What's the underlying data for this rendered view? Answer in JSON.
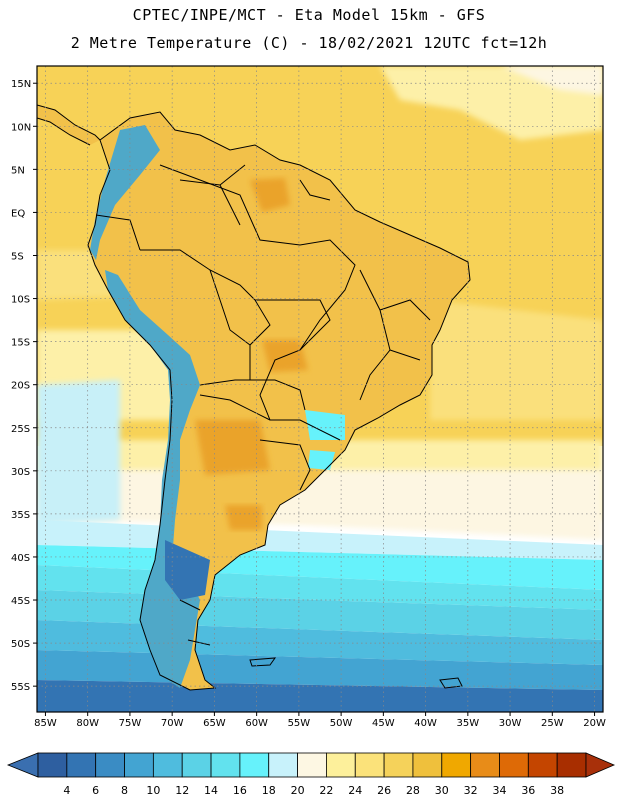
{
  "header": {
    "line1": "CPTEC/INPE/MCT -  Eta Model 15km - GFS",
    "line2": "2 Metre Temperature (C) - 18/02/2021 12UTC fct=12h"
  },
  "axes": {
    "lat_labels": [
      "15N",
      "10N",
      "5N",
      "EQ",
      "5S",
      "10S",
      "15S",
      "20S",
      "25S",
      "30S",
      "35S",
      "40S",
      "45S",
      "50S",
      "55S"
    ],
    "lat_values": [
      15,
      10,
      5,
      0,
      -5,
      -10,
      -15,
      -20,
      -25,
      -30,
      -35,
      -40,
      -45,
      -50,
      -55
    ],
    "lon_labels": [
      "85W",
      "80W",
      "75W",
      "70W",
      "65W",
      "60W",
      "55W",
      "50W",
      "45W",
      "40W",
      "35W",
      "30W",
      "25W",
      "20W"
    ],
    "lon_values": [
      -85,
      -80,
      -75,
      -70,
      -65,
      -60,
      -55,
      -50,
      -45,
      -40,
      -35,
      -30,
      -25,
      -20
    ],
    "lat_range": [
      -58,
      17
    ],
    "lon_range": [
      -86,
      -19
    ]
  },
  "colorbar": {
    "labels": [
      "4",
      "6",
      "8",
      "10",
      "12",
      "14",
      "16",
      "18",
      "20",
      "22",
      "24",
      "26",
      "28",
      "30",
      "32",
      "34",
      "36",
      "38"
    ],
    "colors": [
      "#2e5fa0",
      "#3374b3",
      "#3a8cc4",
      "#43a4d2",
      "#4fbcde",
      "#5bd2e6",
      "#62e2ee",
      "#66f2fb",
      "#c8f2fb",
      "#fdf7e3",
      "#fdf09b",
      "#fbe27a",
      "#f5d25a",
      "#efc03c",
      "#f0a800",
      "#e88c18",
      "#de6a06",
      "#c44500",
      "#a82e00"
    ],
    "low_color": "#3a6fb0",
    "high_color": "#a8300a"
  },
  "palette": {
    "ocean_warm": "#f7d257",
    "ocean_warm_light": "#fae07c",
    "ocean_pale": "#fdf0a8",
    "ocean_cream": "#fdf6e2",
    "ocean_cyan_pale": "#c8f0f8",
    "land_main": "#f2c14a",
    "land_hot": "#eaa32a",
    "andes": "#4fa8c8"
  }
}
